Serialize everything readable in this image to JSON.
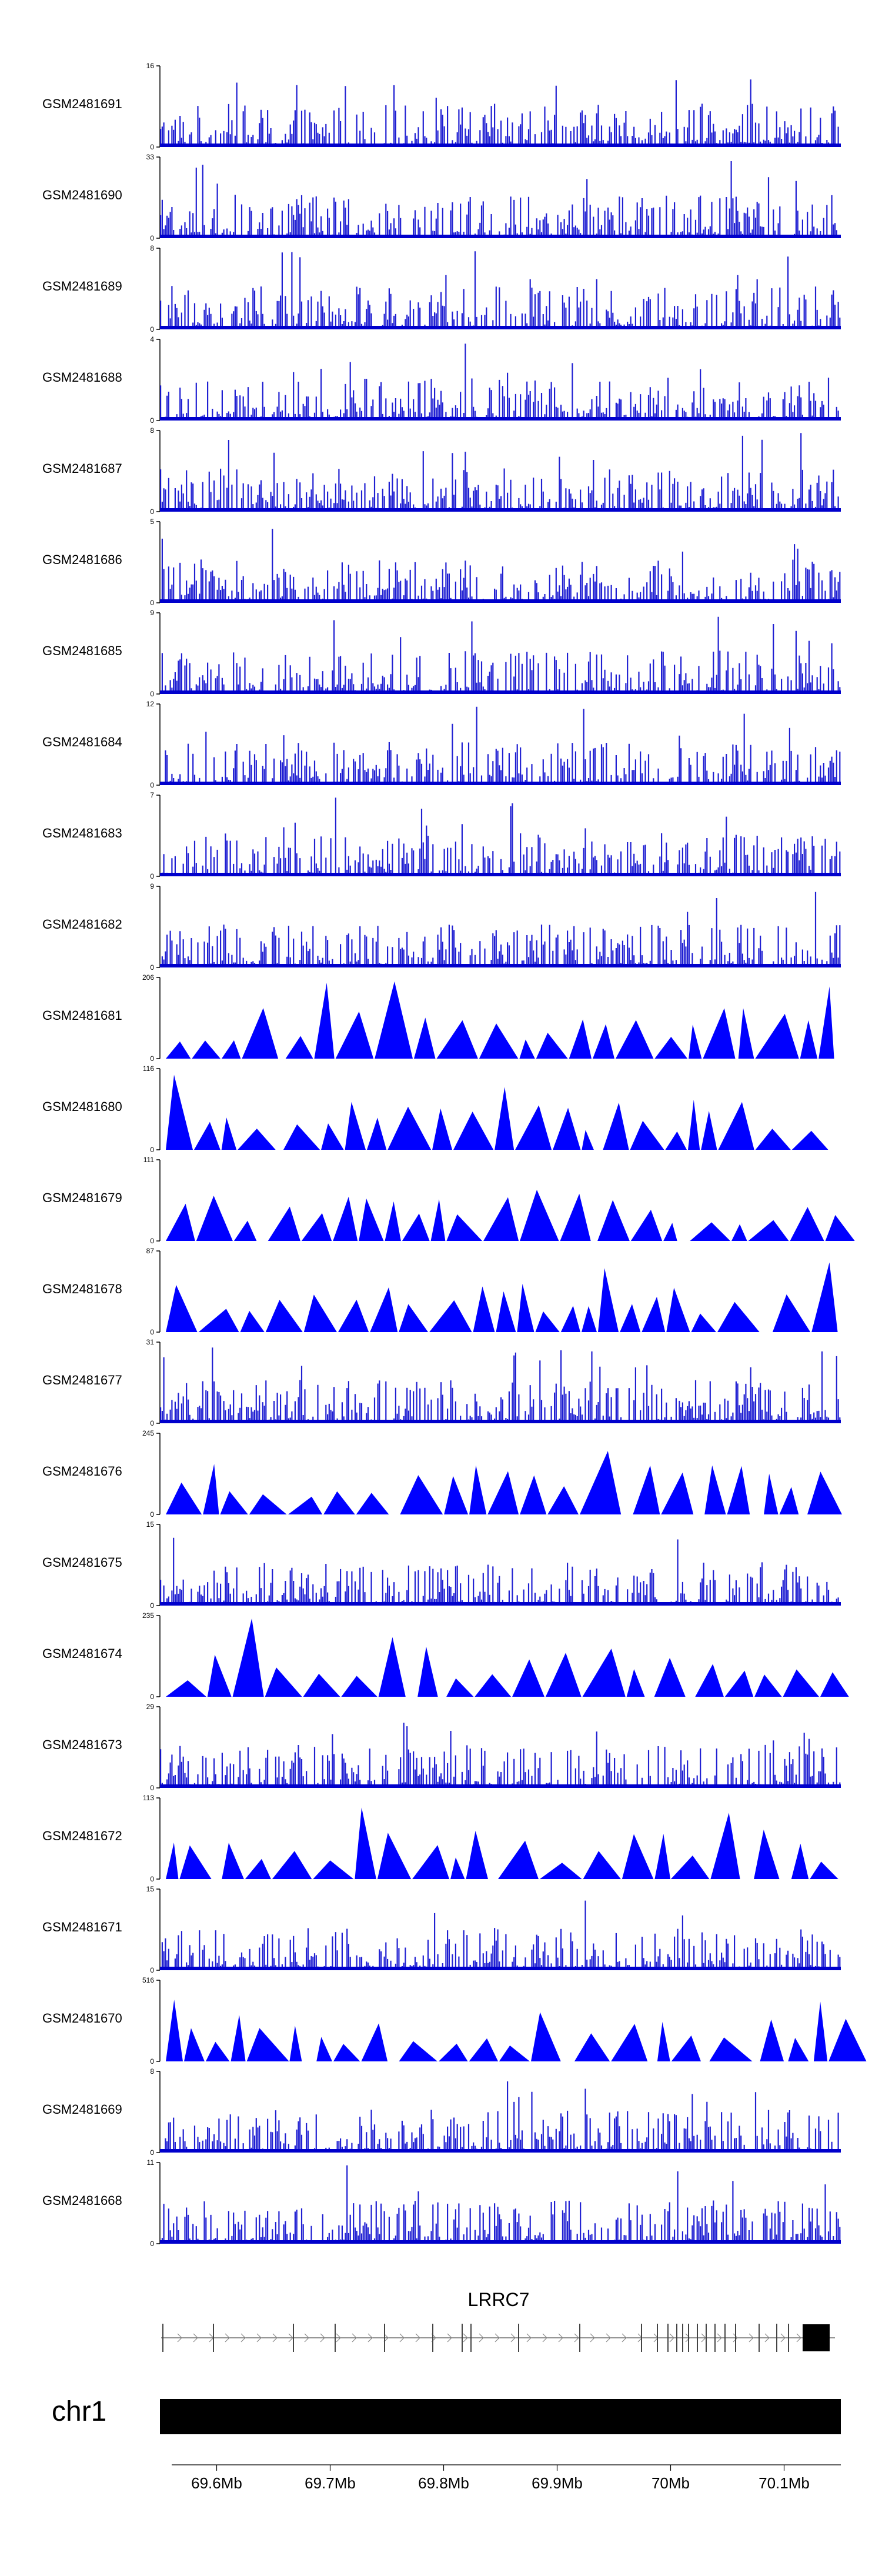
{
  "chart_data": {
    "type": "area",
    "title": "",
    "xlabel": "",
    "ylabel": "",
    "xlim": [
      69550000,
      70150000
    ],
    "tracks": [
      {
        "name": "GSM2481691",
        "ymax": "16",
        "style": "dense"
      },
      {
        "name": "GSM2481690",
        "ymax": "33",
        "style": "dense"
      },
      {
        "name": "GSM2481689",
        "ymax": "8",
        "style": "dense"
      },
      {
        "name": "GSM2481688",
        "ymax": "4",
        "style": "dense"
      },
      {
        "name": "GSM2481687",
        "ymax": "8",
        "style": "dense"
      },
      {
        "name": "GSM2481686",
        "ymax": "5",
        "style": "dense"
      },
      {
        "name": "GSM2481685",
        "ymax": "9",
        "style": "dense"
      },
      {
        "name": "GSM2481684",
        "ymax": "12",
        "style": "dense"
      },
      {
        "name": "GSM2481683",
        "ymax": "7",
        "style": "dense"
      },
      {
        "name": "GSM2481682",
        "ymax": "9",
        "style": "dense"
      },
      {
        "name": "GSM2481681",
        "ymax": "206",
        "style": "triangles"
      },
      {
        "name": "GSM2481680",
        "ymax": "116",
        "style": "triangles"
      },
      {
        "name": "GSM2481679",
        "ymax": "111",
        "style": "triangles"
      },
      {
        "name": "GSM2481678",
        "ymax": "87",
        "style": "triangles"
      },
      {
        "name": "GSM2481677",
        "ymax": "31",
        "style": "dense"
      },
      {
        "name": "GSM2481676",
        "ymax": "245",
        "style": "triangles"
      },
      {
        "name": "GSM2481675",
        "ymax": "15",
        "style": "dense"
      },
      {
        "name": "GSM2481674",
        "ymax": "235",
        "style": "triangles"
      },
      {
        "name": "GSM2481673",
        "ymax": "29",
        "style": "dense"
      },
      {
        "name": "GSM2481672",
        "ymax": "113",
        "style": "triangles"
      },
      {
        "name": "GSM2481671",
        "ymax": "15",
        "style": "dense"
      },
      {
        "name": "GSM2481670",
        "ymax": "516",
        "style": "triangles"
      },
      {
        "name": "GSM2481669",
        "ymax": "8",
        "style": "dense"
      },
      {
        "name": "GSM2481668",
        "ymax": "11",
        "style": "dense"
      }
    ],
    "gene": {
      "name": "LRRC7",
      "strand": "+"
    },
    "chromosome": "chr1",
    "xaxis": {
      "ticks": [
        69600000,
        69700000,
        69800000,
        69900000,
        70000000,
        70100000
      ],
      "labels": [
        "69.6Mb",
        "69.7Mb",
        "69.8Mb",
        "69.9Mb",
        "70Mb",
        "70.1Mb"
      ]
    },
    "colors": {
      "signal": "#0000cc",
      "signal_light": "#5a5ae6",
      "fill": "#0000ff",
      "axis": "#000000",
      "chrom": "#000000"
    }
  }
}
